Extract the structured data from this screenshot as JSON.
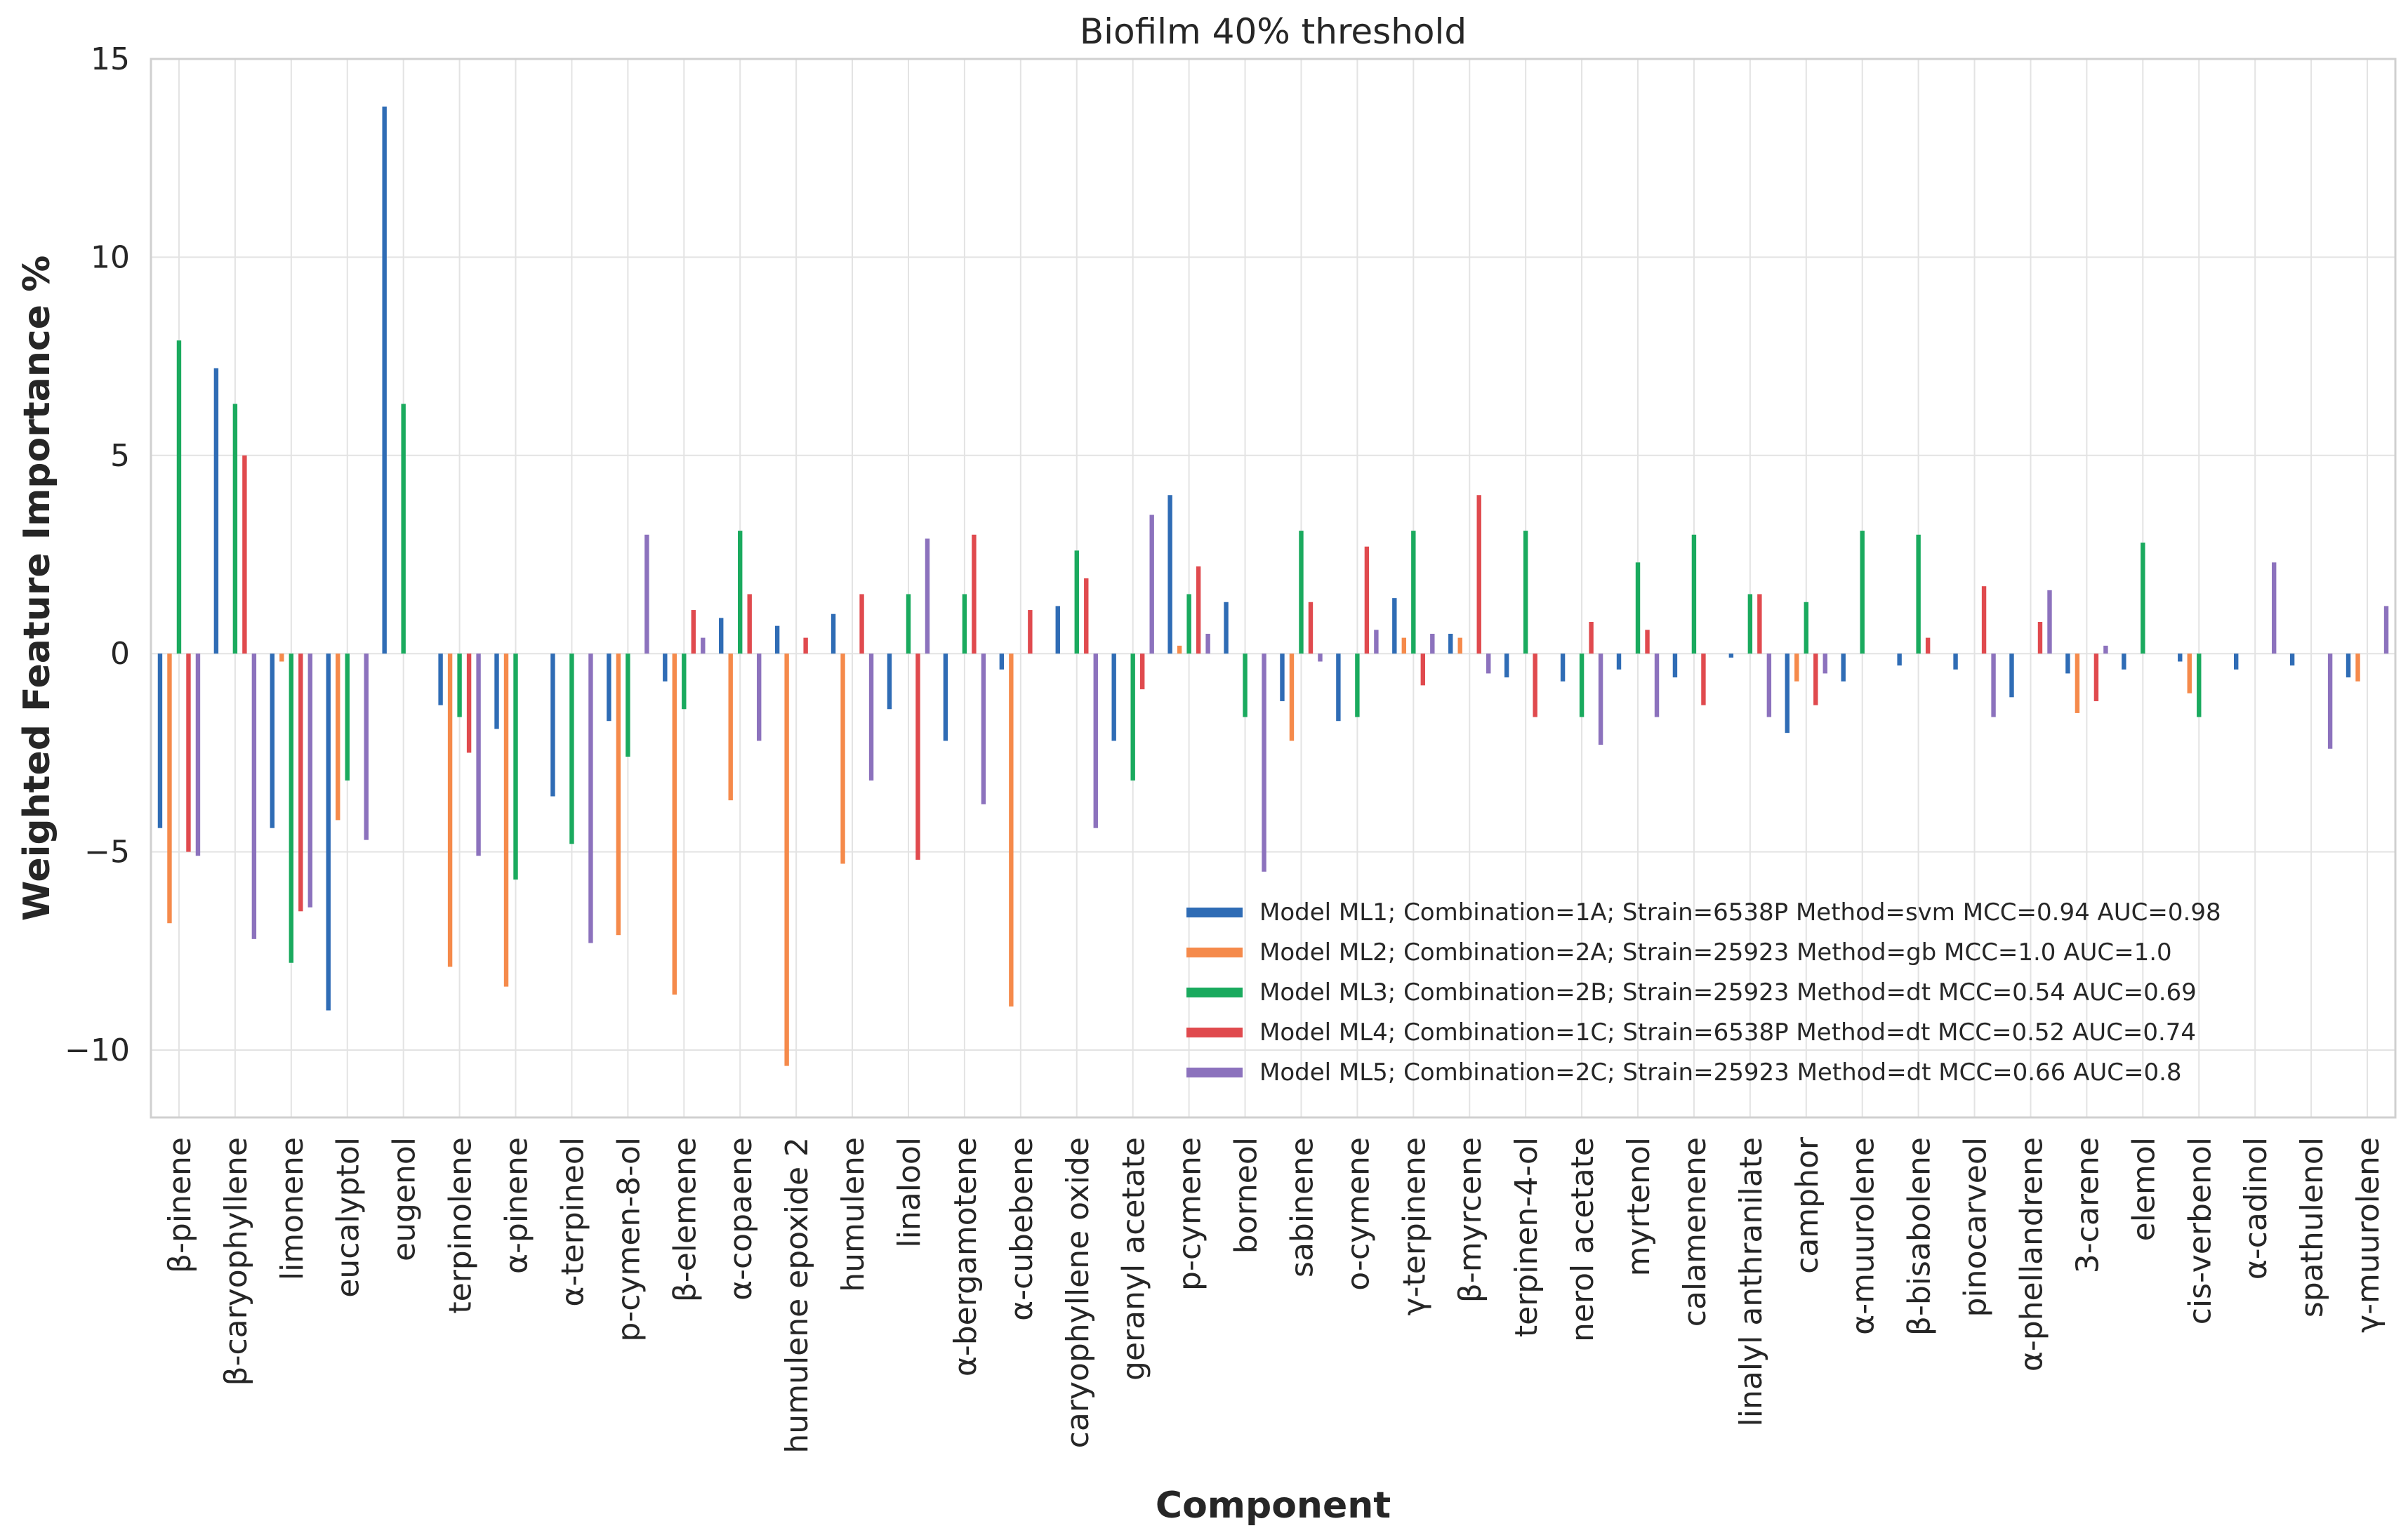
{
  "chart_data": {
    "type": "bar",
    "title": "Biofilm 40% threshold",
    "xlabel": "Component",
    "ylabel": "Weighted Feature Importance %",
    "ylim": [
      -11.7,
      15
    ],
    "yticks": [
      -10,
      -5,
      0,
      5,
      10,
      15
    ],
    "ytick_labels": [
      "−10",
      "−5",
      "0",
      "5",
      "10",
      "15"
    ],
    "grid": true,
    "legend_position": "lower-right",
    "categories": [
      "β-pinene",
      "β-caryophyllene",
      "limonene",
      "eucalyptol",
      "eugenol",
      "terpinolene",
      "α-pinene",
      "α-terpineol",
      "p-cymen-8-ol",
      "β-elemene",
      "α-copaene",
      "humulene epoxide 2",
      "humulene",
      "linalool",
      "α-bergamotene",
      "α-cubebene",
      "caryophyllene oxide",
      "geranyl acetate",
      "p-cymene",
      "borneol",
      "sabinene",
      "o-cymene",
      "γ-terpinene",
      "β-myrcene",
      "terpinen-4-ol",
      "nerol acetate",
      "myrtenol",
      "calamenene",
      "linalyl anthranilate",
      "camphor",
      "α-muurolene",
      "β-bisabolene",
      "pinocarveol",
      "α-phellandrene",
      "3-carene",
      "elemol",
      "cis-verbenol",
      "α-cadinol",
      "spathulenol",
      "γ-muurolene"
    ],
    "series": [
      {
        "name": "Model ML1; Combination=1A; Strain=6538P Method=svm MCC=0.94 AUC=0.98",
        "color": "#2f6cb5",
        "values": [
          -4.4,
          7.2,
          -4.4,
          -9.0,
          13.8,
          -1.3,
          -1.9,
          -3.6,
          -1.7,
          -0.7,
          0.9,
          0.7,
          1.0,
          -1.4,
          -2.2,
          -0.4,
          1.2,
          -2.2,
          4.0,
          1.3,
          -1.2,
          -1.7,
          1.4,
          0.5,
          -0.6,
          -0.7,
          -0.4,
          -0.6,
          -0.1,
          -2.0,
          -0.7,
          -0.3,
          -0.4,
          -1.1,
          -0.5,
          -0.4,
          -0.2,
          -0.4,
          -0.3,
          -0.6
        ]
      },
      {
        "name": "Model ML2; Combination=2A; Strain=25923 Method=gb MCC=1.0 AUC=1.0",
        "color": "#f58a4b",
        "values": [
          -6.8,
          0,
          -0.2,
          -4.2,
          0,
          -7.9,
          -8.4,
          0,
          -7.1,
          -8.6,
          -3.7,
          -10.4,
          -5.3,
          0,
          0,
          -8.9,
          0,
          0,
          0.2,
          0,
          -2.2,
          0,
          0.4,
          0.4,
          0,
          0,
          0,
          0,
          0,
          -0.7,
          0,
          0,
          0,
          0,
          -1.5,
          0,
          -1.0,
          0,
          0,
          -0.7
        ]
      },
      {
        "name": "Model ML3; Combination=2B; Strain=25923 Method=dt MCC=0.54 AUC=0.69",
        "color": "#1aaa5e",
        "values": [
          7.9,
          6.3,
          -7.8,
          -3.2,
          6.3,
          -1.6,
          -5.7,
          -4.8,
          -2.6,
          -1.4,
          3.1,
          0,
          0,
          1.5,
          1.5,
          0,
          2.6,
          -3.2,
          1.5,
          -1.6,
          3.1,
          -1.6,
          3.1,
          0,
          3.1,
          -1.6,
          2.3,
          3.0,
          1.5,
          1.3,
          3.1,
          3.0,
          0,
          0,
          0,
          2.8,
          -1.6,
          0,
          0,
          0
        ]
      },
      {
        "name": "Model ML4; Combination=1C; Strain=6538P Method=dt MCC=0.52 AUC=0.74",
        "color": "#e04a4e",
        "values": [
          -5.0,
          5.0,
          -6.5,
          0,
          0,
          -2.5,
          0,
          0,
          0,
          1.1,
          1.5,
          0.4,
          1.5,
          -5.2,
          3.0,
          1.1,
          1.9,
          -0.9,
          2.2,
          0,
          1.3,
          2.7,
          -0.8,
          4.0,
          -1.6,
          0.8,
          0.6,
          -1.3,
          1.5,
          -1.3,
          0,
          0.4,
          1.7,
          0.8,
          -1.2,
          0,
          0,
          0,
          0,
          0
        ]
      },
      {
        "name": "Model ML5; Combination=2C; Strain=25923 Method=dt MCC=0.66 AUC=0.8",
        "color": "#8c72bd",
        "values": [
          -5.1,
          -7.2,
          -6.4,
          -4.7,
          0,
          -5.1,
          0,
          -7.3,
          3.0,
          0.4,
          -2.2,
          0,
          -3.2,
          2.9,
          -3.8,
          0,
          -4.4,
          3.5,
          0.5,
          -5.5,
          -0.2,
          0.6,
          0.5,
          -0.5,
          0,
          -2.3,
          -1.6,
          0,
          -1.6,
          -0.5,
          0,
          0,
          -1.6,
          1.6,
          0.2,
          0,
          0,
          2.3,
          -2.4,
          1.2
        ]
      }
    ]
  }
}
